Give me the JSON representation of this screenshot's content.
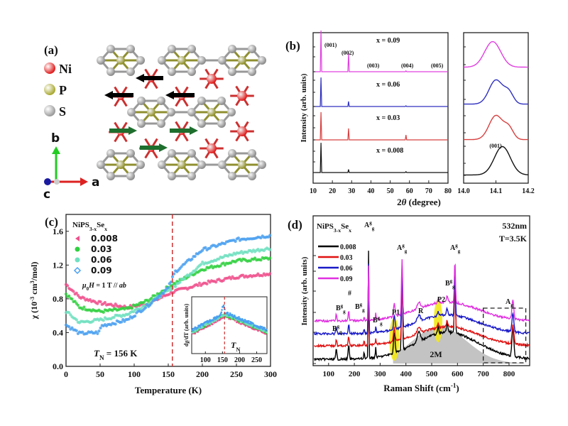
{
  "panels": {
    "a": {
      "label": "(a)",
      "legend": [
        {
          "name": "Ni",
          "color": "#e01a1a"
        },
        {
          "name": "P",
          "color": "#a8a830"
        },
        {
          "name": "S",
          "color": "#9a9a9a"
        }
      ],
      "axes": {
        "b": "b",
        "a": "a",
        "c": "c"
      },
      "spin_colors": {
        "left": "#000000",
        "right": "#1e6e2e"
      }
    },
    "b": {
      "label": "(b)"
    },
    "c": {
      "label": "(c)"
    },
    "d": {
      "label": "(d)"
    }
  },
  "chart_data": [
    {
      "id": "b-main",
      "type": "line",
      "xlabel": "2θ (degree)",
      "ylabel": "Intensity (arb. units)",
      "xlim": [
        10,
        80
      ],
      "xticks": [
        10,
        20,
        30,
        40,
        50,
        60,
        70,
        80
      ],
      "peak_labels": [
        "(001)",
        "(002)",
        "(003)",
        "(004)",
        "(005)"
      ],
      "peak_positions": [
        14.1,
        28.4,
        43.0,
        58.2,
        74.0
      ],
      "series": [
        {
          "name": "x = 0.09",
          "color": "#e040e0",
          "peaks": [
            [
              14.1,
              1.0
            ],
            [
              28.4,
              0.45
            ],
            [
              43.0,
              0.0
            ],
            [
              58.2,
              0.02
            ],
            [
              74.0,
              0.0
            ]
          ]
        },
        {
          "name": "x = 0.06",
          "color": "#3030c0",
          "peaks": [
            [
              14.1,
              0.85
            ],
            [
              28.4,
              0.15
            ],
            [
              58.2,
              0.02
            ]
          ]
        },
        {
          "name": "x = 0.03",
          "color": "#d84040",
          "peaks": [
            [
              14.1,
              0.85
            ],
            [
              28.4,
              0.35
            ],
            [
              58.2,
              0.15
            ]
          ]
        },
        {
          "name": "x = 0.008",
          "color": "#111111",
          "peaks": [
            [
              14.1,
              0.95
            ],
            [
              28.4,
              0.1
            ],
            [
              58.2,
              0.03
            ]
          ]
        }
      ]
    },
    {
      "id": "b-zoom",
      "type": "line",
      "xlim": [
        14.0,
        14.2
      ],
      "xticks": [
        "14.0",
        "14.1",
        "14.2"
      ],
      "annotation": "(001)",
      "series": [
        {
          "name": "x = 0.09",
          "color": "#e040e0",
          "center": 14.09,
          "width": 0.035
        },
        {
          "name": "x = 0.06",
          "color": "#3030c0",
          "center": 14.1,
          "width": 0.03,
          "shoulder": 14.14
        },
        {
          "name": "x = 0.03",
          "color": "#d84040",
          "center": 14.1,
          "width": 0.03,
          "shoulder": 14.14
        },
        {
          "name": "x = 0.008",
          "color": "#111111",
          "center": 14.12,
          "width": 0.035
        }
      ]
    },
    {
      "id": "c-main",
      "type": "scatter",
      "title": "NiPS3-xSex",
      "xlabel": "Temperature (K)",
      "ylabel": "χ (10⁻³ cm³/mol)",
      "xlim": [
        0,
        300
      ],
      "ylim": [
        0,
        1.8
      ],
      "xticks": [
        0,
        50,
        100,
        150,
        200,
        250,
        300
      ],
      "yticks": [
        "0.0",
        "0.4",
        "0.8",
        "1.2",
        "1.6"
      ],
      "field_annotation": "μ0H = 1 T // ab",
      "tn_annotation": "TN = 156 K",
      "tn": 156,
      "series": [
        {
          "name": "0.008",
          "color": "#f0508c",
          "marker": "triangle-left",
          "points": [
            [
              0,
              0.97
            ],
            [
              20,
              0.82
            ],
            [
              50,
              0.75
            ],
            [
              90,
              0.7
            ],
            [
              120,
              0.74
            ],
            [
              156,
              0.88
            ],
            [
              200,
              0.98
            ],
            [
              250,
              1.06
            ],
            [
              300,
              1.1
            ]
          ]
        },
        {
          "name": "0.03",
          "color": "#30d040",
          "marker": "circle",
          "points": [
            [
              0,
              0.86
            ],
            [
              20,
              0.7
            ],
            [
              50,
              0.65
            ],
            [
              90,
              0.68
            ],
            [
              120,
              0.78
            ],
            [
              156,
              0.97
            ],
            [
              200,
              1.15
            ],
            [
              250,
              1.25
            ],
            [
              300,
              1.28
            ]
          ]
        },
        {
          "name": "0.06",
          "color": "#70e0c0",
          "marker": "circle",
          "points": [
            [
              0,
              0.65
            ],
            [
              20,
              0.52
            ],
            [
              50,
              0.55
            ],
            [
              90,
              0.62
            ],
            [
              120,
              0.74
            ],
            [
              156,
              0.93
            ],
            [
              200,
              1.22
            ],
            [
              250,
              1.34
            ],
            [
              300,
              1.4
            ]
          ]
        },
        {
          "name": "0.09",
          "color": "#4aa0f0",
          "marker": "diamond",
          "points": [
            [
              0,
              0.49
            ],
            [
              20,
              0.39
            ],
            [
              48,
              0.4
            ],
            [
              52,
              0.48
            ],
            [
              90,
              0.55
            ],
            [
              120,
              0.72
            ],
            [
              150,
              0.93
            ],
            [
              160,
              1.12
            ],
            [
              200,
              1.38
            ],
            [
              250,
              1.5
            ],
            [
              300,
              1.55
            ]
          ]
        }
      ],
      "inset": {
        "xlabel": "",
        "ylabel": "dχ/dT (arb. units)",
        "xticks": [
          100,
          150,
          200,
          250
        ],
        "xlim": [
          60,
          280
        ],
        "annotation": "TN",
        "tn": 156
      }
    },
    {
      "id": "d-main",
      "type": "line",
      "title": "NiPS3-xSex",
      "xlabel": "Raman Shift (cm⁻¹)",
      "ylabel": "Intensity (arb. units)",
      "xlim": [
        40,
        880
      ],
      "xticks": [
        100,
        200,
        300,
        400,
        500,
        600,
        700,
        800
      ],
      "annotations": [
        "532nm",
        "T=3.5K",
        "2M",
        "P1",
        "P2",
        "R",
        "#",
        "Ag"
      ],
      "mode_labels": [
        {
          "text": "B1g",
          "x": 130
        },
        {
          "text": "B2g",
          "x": 178
        },
        {
          "text": "#",
          "x": 225
        },
        {
          "text": "B3g",
          "x": 238
        },
        {
          "text": "A1g",
          "x": 255
        },
        {
          "text": "B4g",
          "x": 283
        },
        {
          "text": "P1",
          "x": 355
        },
        {
          "text": "A2g",
          "x": 385
        },
        {
          "text": "R",
          "x": 450
        },
        {
          "text": "P2",
          "x": 520
        },
        {
          "text": "B5g",
          "x": 560
        },
        {
          "text": "A3g",
          "x": 590
        },
        {
          "text": "Ag",
          "x": 815
        }
      ],
      "series": [
        {
          "name": "0.008",
          "color": "#000000"
        },
        {
          "name": "0.03",
          "color": "#e01010"
        },
        {
          "name": "0.06",
          "color": "#1818c8"
        },
        {
          "name": "0.09",
          "color": "#e030e0"
        }
      ]
    }
  ]
}
